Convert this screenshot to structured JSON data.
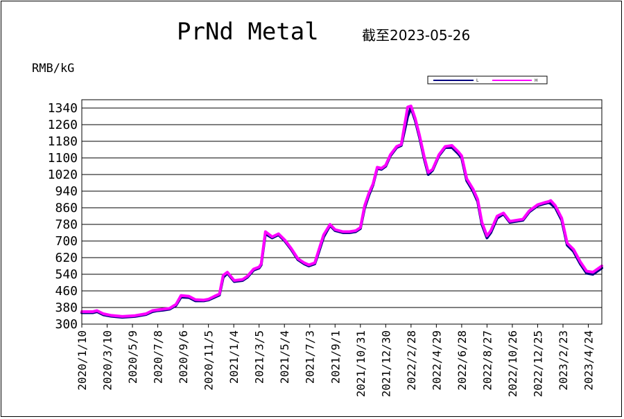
{
  "chart_data": {
    "type": "line",
    "title": "PrNd Metal",
    "subtitle": "截至2023-05-26",
    "ylabel": "RMB/kG",
    "ylim": [
      300,
      1380
    ],
    "yticks": [
      300,
      380,
      460,
      540,
      620,
      700,
      780,
      860,
      940,
      1020,
      1100,
      1180,
      1260,
      1340
    ],
    "xlim": [
      "2020-01-10",
      "2023-05-26"
    ],
    "xticks": [
      "2020/1/10",
      "2020/3/10",
      "2020/5/9",
      "2020/7/8",
      "2020/9/6",
      "2020/11/5",
      "2021/1/4",
      "2021/3/5",
      "2021/5/4",
      "2021/7/3",
      "2021/9/1",
      "2021/10/31",
      "2021/12/30",
      "2022/2/28",
      "2022/4/29",
      "2022/6/28",
      "2022/8/27",
      "2022/10/26",
      "2022/12/25",
      "2023/2/23",
      "2023/4/24"
    ],
    "grid": "horizontal",
    "legend_position": "top-right",
    "series": [
      {
        "name": "L",
        "color": "#000080",
        "x": [
          "2020-01-10",
          "2020-02-05",
          "2020-02-15",
          "2020-03-01",
          "2020-03-20",
          "2020-04-15",
          "2020-05-15",
          "2020-06-10",
          "2020-06-25",
          "2020-07-05",
          "2020-07-20",
          "2020-08-05",
          "2020-08-20",
          "2020-09-01",
          "2020-09-20",
          "2020-10-05",
          "2020-10-25",
          "2020-11-05",
          "2020-11-20",
          "2020-12-01",
          "2020-12-10",
          "2020-12-20",
          "2021-01-05",
          "2021-01-25",
          "2021-02-05",
          "2021-02-20",
          "2021-03-05",
          "2021-03-10",
          "2021-03-20",
          "2021-04-05",
          "2021-04-20",
          "2021-05-05",
          "2021-05-20",
          "2021-06-05",
          "2021-06-20",
          "2021-07-01",
          "2021-07-15",
          "2021-07-25",
          "2021-08-05",
          "2021-08-20",
          "2021-09-01",
          "2021-09-20",
          "2021-10-05",
          "2021-10-20",
          "2021-10-31",
          "2021-11-10",
          "2021-11-20",
          "2021-11-30",
          "2021-12-10",
          "2021-12-20",
          "2021-12-30",
          "2022-01-10",
          "2022-01-25",
          "2022-02-05",
          "2022-02-20",
          "2022-02-28",
          "2022-03-10",
          "2022-03-20",
          "2022-04-01",
          "2022-04-10",
          "2022-04-20",
          "2022-05-05",
          "2022-05-20",
          "2022-06-05",
          "2022-06-20",
          "2022-06-28",
          "2022-07-10",
          "2022-07-25",
          "2022-08-05",
          "2022-08-15",
          "2022-08-27",
          "2022-09-05",
          "2022-09-20",
          "2022-10-05",
          "2022-10-20",
          "2022-11-05",
          "2022-11-20",
          "2022-12-05",
          "2022-12-25",
          "2023-01-10",
          "2023-01-20",
          "2023-01-25",
          "2023-02-05",
          "2023-02-20",
          "2023-03-05",
          "2023-03-20",
          "2023-04-05",
          "2023-04-20",
          "2023-05-05",
          "2023-05-26"
        ],
        "y": [
          355,
          355,
          360,
          345,
          338,
          333,
          337,
          346,
          360,
          364,
          367,
          372,
          390,
          430,
          428,
          412,
          412,
          416,
          430,
          440,
          525,
          545,
          505,
          510,
          525,
          560,
          570,
          585,
          735,
          715,
          730,
          700,
          660,
          610,
          590,
          580,
          590,
          650,
          720,
          775,
          750,
          740,
          740,
          745,
          760,
          860,
          920,
          970,
          1050,
          1045,
          1060,
          1110,
          1150,
          1160,
          1300,
          1340,
          1280,
          1200,
          1090,
          1020,
          1040,
          1110,
          1150,
          1150,
          1120,
          1100,
          990,
          940,
          890,
          780,
          715,
          740,
          810,
          830,
          790,
          795,
          800,
          840,
          870,
          880,
          885,
          880,
          860,
          800,
          680,
          650,
          590,
          545,
          540,
          570
        ]
      },
      {
        "name": "H",
        "color": "#ff00ff",
        "x": [
          "2020-01-10",
          "2020-02-05",
          "2020-02-15",
          "2020-03-01",
          "2020-03-20",
          "2020-04-15",
          "2020-05-15",
          "2020-06-10",
          "2020-06-25",
          "2020-07-05",
          "2020-07-20",
          "2020-08-05",
          "2020-08-20",
          "2020-09-01",
          "2020-09-20",
          "2020-10-05",
          "2020-10-25",
          "2020-11-05",
          "2020-11-20",
          "2020-12-01",
          "2020-12-10",
          "2020-12-20",
          "2021-01-05",
          "2021-01-25",
          "2021-02-05",
          "2021-02-20",
          "2021-03-05",
          "2021-03-10",
          "2021-03-20",
          "2021-04-05",
          "2021-04-20",
          "2021-05-05",
          "2021-05-20",
          "2021-06-05",
          "2021-06-20",
          "2021-07-01",
          "2021-07-15",
          "2021-07-25",
          "2021-08-05",
          "2021-08-20",
          "2021-09-01",
          "2021-09-20",
          "2021-10-05",
          "2021-10-20",
          "2021-10-31",
          "2021-11-10",
          "2021-11-20",
          "2021-11-30",
          "2021-12-10",
          "2021-12-20",
          "2021-12-30",
          "2022-01-10",
          "2022-01-25",
          "2022-02-05",
          "2022-02-20",
          "2022-02-28",
          "2022-03-10",
          "2022-03-20",
          "2022-04-01",
          "2022-04-10",
          "2022-04-20",
          "2022-05-05",
          "2022-05-20",
          "2022-06-05",
          "2022-06-20",
          "2022-06-28",
          "2022-07-10",
          "2022-07-25",
          "2022-08-05",
          "2022-08-15",
          "2022-08-27",
          "2022-09-05",
          "2022-09-20",
          "2022-10-05",
          "2022-10-20",
          "2022-11-05",
          "2022-11-20",
          "2022-12-05",
          "2022-12-25",
          "2023-01-10",
          "2023-01-20",
          "2023-01-25",
          "2023-02-05",
          "2023-02-20",
          "2023-03-05",
          "2023-03-20",
          "2023-04-05",
          "2023-04-20",
          "2023-05-05",
          "2023-05-26"
        ],
        "y": [
          360,
          360,
          365,
          350,
          342,
          337,
          341,
          350,
          365,
          368,
          372,
          376,
          395,
          438,
          434,
          418,
          416,
          420,
          435,
          445,
          535,
          550,
          510,
          515,
          530,
          565,
          575,
          590,
          745,
          720,
          735,
          705,
          665,
          615,
          595,
          585,
          595,
          660,
          730,
          780,
          755,
          745,
          745,
          750,
          765,
          870,
          930,
          975,
          1055,
          1050,
          1065,
          1115,
          1155,
          1165,
          1345,
          1350,
          1290,
          1210,
          1100,
          1030,
          1045,
          1115,
          1155,
          1160,
          1130,
          1110,
          1000,
          950,
          900,
          790,
          725,
          750,
          820,
          835,
          795,
          800,
          805,
          845,
          875,
          885,
          890,
          895,
          870,
          810,
          690,
          660,
          600,
          555,
          550,
          580
        ]
      }
    ]
  }
}
